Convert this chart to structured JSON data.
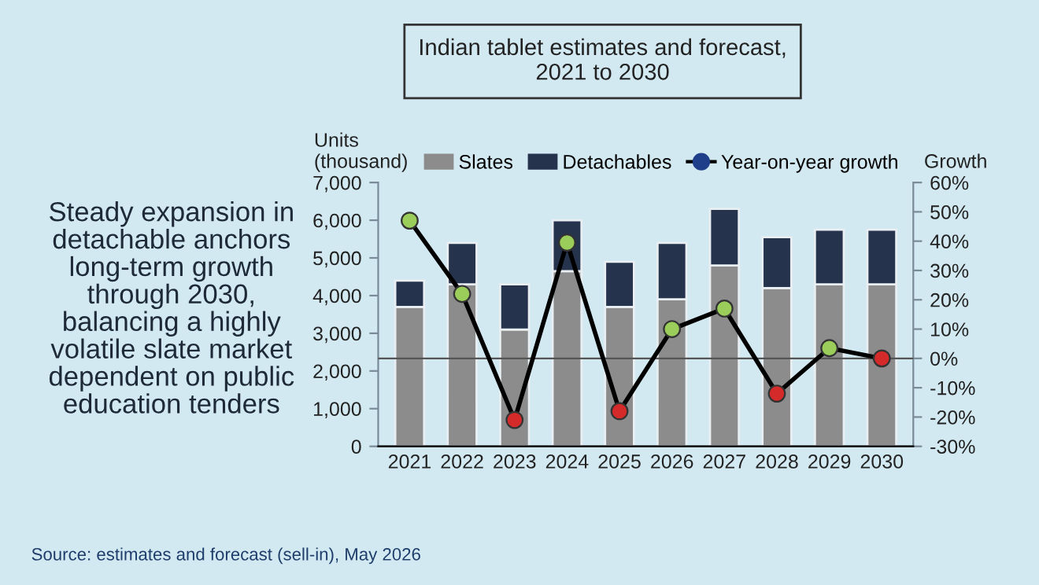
{
  "chart_data": {
    "type": "bar",
    "stacked": true,
    "title": "Indian tablet estimates and forecast,\n2021 to 2030",
    "ylabel": "Units\n(thousand)",
    "y2label": "Growth",
    "categories": [
      "2021",
      "2022",
      "2023",
      "2024",
      "2025",
      "2026",
      "2027",
      "2028",
      "2029",
      "2030"
    ],
    "series": [
      {
        "name": "Slates",
        "color": "#8c8c8c",
        "values": [
          3700,
          4300,
          3100,
          4650,
          3700,
          3900,
          4800,
          4200,
          4300,
          4300
        ]
      },
      {
        "name": "Detachables",
        "color": "#26334d",
        "values": [
          700,
          1100,
          1200,
          1350,
          1200,
          1500,
          1500,
          1350,
          1450,
          1450
        ]
      },
      {
        "name": "Year-on-year growth",
        "type": "line",
        "axis": "y2",
        "color": "#000000",
        "marker": "circle",
        "colors": [
          "#9acd5a",
          "#9acd5a",
          "#d42a2a",
          "#9acd5a",
          "#d42a2a",
          "#9acd5a",
          "#9acd5a",
          "#d42a2a",
          "#9acd5a",
          "#d42a2a"
        ],
        "values": [
          47,
          22,
          -21,
          39.5,
          -18,
          10,
          17,
          -12,
          3.5,
          0
        ]
      }
    ],
    "ylim": [
      0,
      7000
    ],
    "yticks": [
      {
        "value": 0,
        "label": "0"
      },
      {
        "value": 1000,
        "label": "1,000"
      },
      {
        "value": 2000,
        "label": "2,000"
      },
      {
        "value": 3000,
        "label": "3,000"
      },
      {
        "value": 4000,
        "label": "4,000"
      },
      {
        "value": 5000,
        "label": "5,000"
      },
      {
        "value": 6000,
        "label": "6,000"
      },
      {
        "value": 7000,
        "label": "7,000"
      }
    ],
    "y2lim": [
      -30,
      60
    ],
    "y2ticks": [
      {
        "value": -30,
        "label": "-30%"
      },
      {
        "value": -20,
        "label": "-20%"
      },
      {
        "value": -10,
        "label": "-10%"
      },
      {
        "value": 0,
        "label": "0%"
      },
      {
        "value": 10,
        "label": "10%"
      },
      {
        "value": 20,
        "label": "20%"
      },
      {
        "value": 30,
        "label": "30%"
      },
      {
        "value": 40,
        "label": "40%"
      },
      {
        "value": 50,
        "label": "50%"
      },
      {
        "value": 60,
        "label": "60%"
      }
    ],
    "ref_lines": [
      {
        "axis": "y2",
        "value": 0,
        "color": "#555555"
      }
    ],
    "legend": "top",
    "grid": false,
    "annotations": [
      "Steady expansion in\ndetachable anchors\nlong-term growth\nthrough 2030,\nbalancing a highly\nvolatile slate market\ndependent on public\neducation tenders",
      "Source: estimates and forecast (sell-in), May 2026"
    ]
  }
}
